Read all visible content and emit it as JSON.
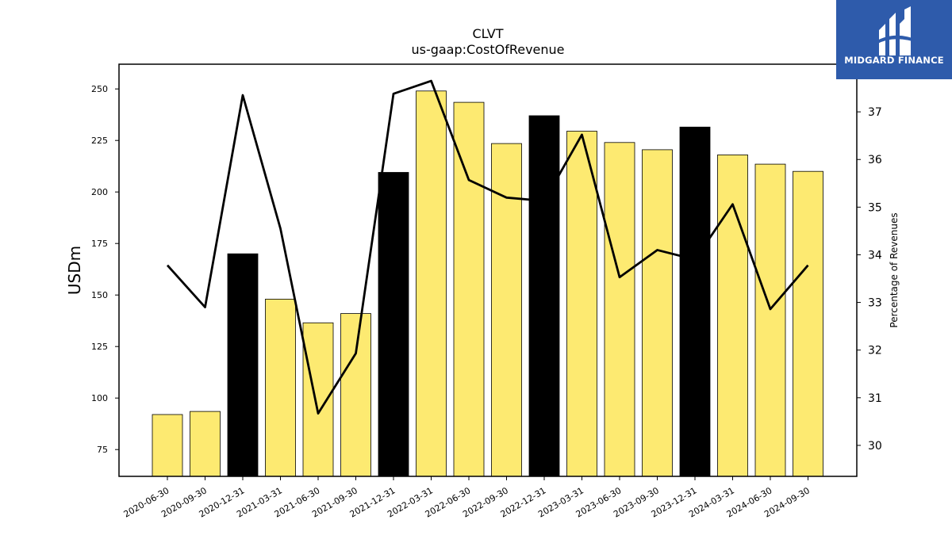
{
  "chart_data": {
    "type": "bar",
    "title": "CLVT",
    "subtitle": "us-gaap:CostOfRevenue",
    "ylabel": "USDm",
    "y2label": "Percentage of Revenues",
    "ylim": [
      62,
      262
    ],
    "y2lim": [
      29.35,
      38.0
    ],
    "yticks": [
      75,
      100,
      125,
      150,
      175,
      200,
      225,
      250
    ],
    "y2ticks": [
      30,
      31,
      32,
      33,
      34,
      35,
      36,
      37
    ],
    "categories": [
      "2020-06-30",
      "2020-09-30",
      "2020-12-31",
      "2021-03-31",
      "2021-06-30",
      "2021-09-30",
      "2021-12-31",
      "2022-03-31",
      "2022-06-30",
      "2022-09-30",
      "2022-12-31",
      "2023-03-31",
      "2023-06-30",
      "2023-09-30",
      "2023-12-31",
      "2024-03-31",
      "2024-06-30",
      "2024-09-30"
    ],
    "series": [
      {
        "kind": "bar",
        "values": [
          92,
          93.5,
          170,
          148,
          136.5,
          141,
          209.5,
          249,
          243.5,
          223.5,
          237,
          229.5,
          224,
          220.5,
          231.5,
          218,
          213.5,
          210
        ],
        "colors": [
          "#fdea71",
          "#fdea71",
          "#000000",
          "#fdea71",
          "#fdea71",
          "#fdea71",
          "#000000",
          "#fdea71",
          "#fdea71",
          "#fdea71",
          "#000000",
          "#fdea71",
          "#fdea71",
          "#fdea71",
          "#000000",
          "#fdea71",
          "#fdea71",
          "#fdea71"
        ]
      },
      {
        "kind": "line",
        "axis": "right",
        "color": "#000000",
        "values": [
          33.78,
          32.9,
          37.35,
          34.55,
          30.67,
          31.93,
          37.38,
          37.65,
          35.57,
          35.2,
          35.13,
          36.52,
          33.53,
          34.1,
          33.9,
          35.06,
          32.86,
          33.78
        ]
      }
    ],
    "grid": false,
    "legend": "none"
  },
  "logo": {
    "text": "MIDGARD FINANCE",
    "color": "#2e5bab"
  }
}
